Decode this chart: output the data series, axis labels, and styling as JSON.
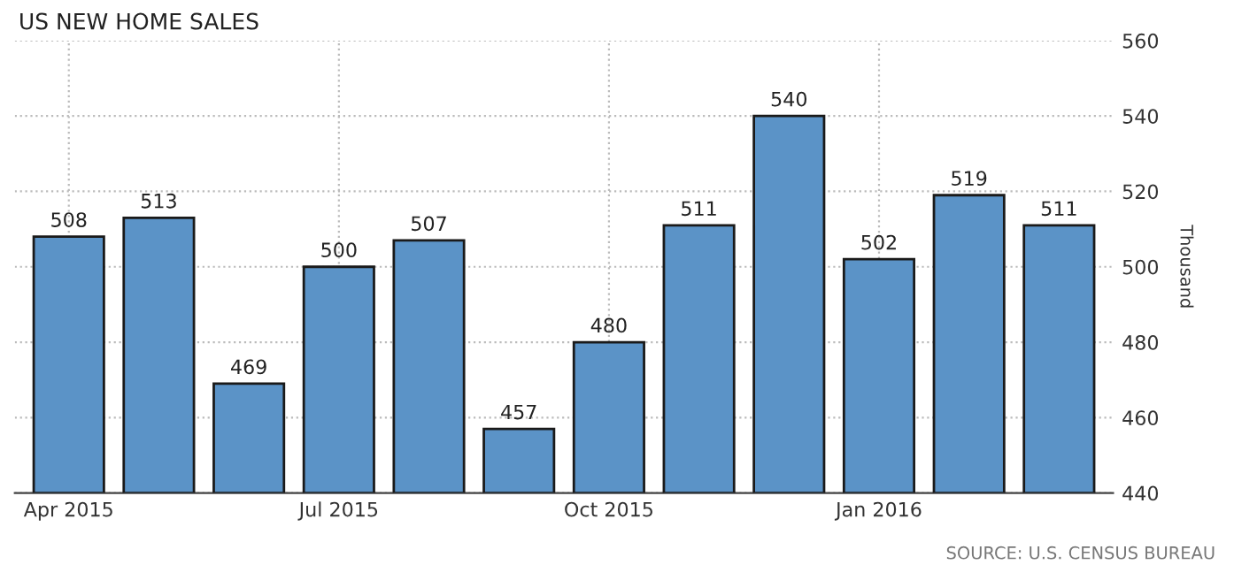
{
  "chart_data": {
    "type": "bar",
    "title": "US NEW HOME SALES",
    "ylabel": "Thousand",
    "categories": [
      "Apr 2015",
      null,
      null,
      "Jul 2015",
      null,
      null,
      "Oct 2015",
      null,
      null,
      "Jan 2016",
      null,
      null
    ],
    "values": [
      508,
      513,
      469,
      500,
      507,
      457,
      480,
      511,
      540,
      502,
      519,
      511
    ],
    "color": "#5b93c7",
    "ylim": [
      440,
      560
    ],
    "yticks": [
      440,
      460,
      480,
      500,
      520,
      540,
      560
    ],
    "grid": true,
    "data_labels": true,
    "annotations": [
      "SOURCE: U.S. CENSUS BUREAU"
    ]
  }
}
